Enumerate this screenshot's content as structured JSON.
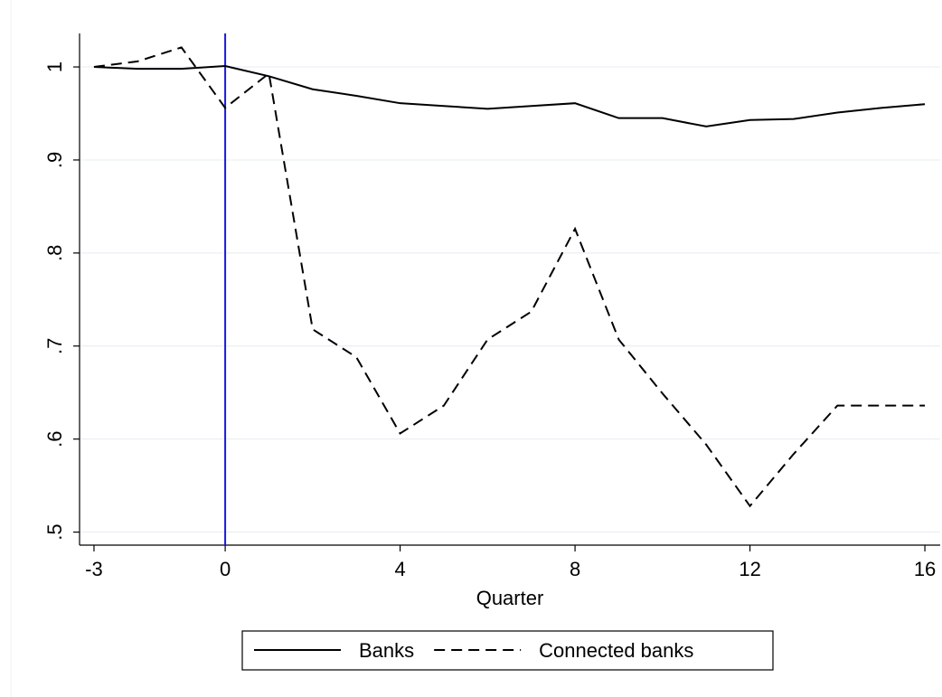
{
  "chart_data": {
    "type": "line",
    "x": [
      -3,
      -2,
      -1,
      0,
      1,
      2,
      3,
      4,
      5,
      6,
      7,
      8,
      9,
      10,
      11,
      12,
      13,
      14,
      15,
      16
    ],
    "series": [
      {
        "name": "Banks",
        "color": "#000000",
        "linestyle": "solid",
        "values": [
          1.0,
          0.998,
          0.998,
          1.001,
          0.99,
          0.976,
          0.969,
          0.961,
          0.958,
          0.955,
          0.958,
          0.961,
          0.945,
          0.945,
          0.936,
          0.943,
          0.944,
          0.951,
          0.956,
          0.96
        ]
      },
      {
        "name": "Connected banks",
        "color": "#000000",
        "linestyle": "dashed",
        "values": [
          1.0,
          1.006,
          1.021,
          0.956,
          0.993,
          0.718,
          0.688,
          0.606,
          0.636,
          0.707,
          0.737,
          0.826,
          0.707,
          0.649,
          0.594,
          0.528,
          0.584,
          0.636,
          0.636,
          0.636
        ]
      }
    ],
    "xlabel": "Quarter",
    "xlim": [
      -3.33,
      16.35
    ],
    "xticks": [
      -3,
      0,
      4,
      8,
      12,
      16
    ],
    "ylim": [
      0.486,
      1.036
    ],
    "yticks": [
      {
        "value": 0.5,
        "label": ".5"
      },
      {
        "value": 0.6,
        "label": ".6"
      },
      {
        "value": 0.7,
        "label": ".7"
      },
      {
        "value": 0.8,
        "label": ".8"
      },
      {
        "value": 0.9,
        "label": ".9"
      },
      1
    ],
    "grid": true,
    "xline": {
      "value": 0,
      "color": "#1a1adb"
    },
    "legend": "bottom"
  }
}
